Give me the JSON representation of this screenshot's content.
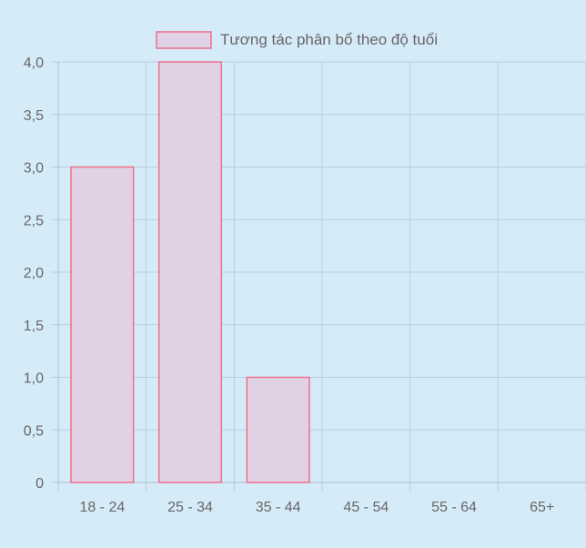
{
  "colors": {
    "background": "#d6ebf8",
    "grid": "#b9cde0",
    "bar_fill": "#e0d2e4",
    "bar_stroke": "#ed6f8c",
    "text": "#666666"
  },
  "chart_data": {
    "type": "bar",
    "legend": {
      "label": "Tương tác phân bổ theo độ tuổi",
      "placement": "top-center"
    },
    "categories": [
      "18 - 24",
      "25 - 34",
      "35 - 44",
      "45 - 54",
      "55 - 64",
      "65+"
    ],
    "series": [
      {
        "name": "Tương tác phân bổ theo độ tuổi",
        "values": [
          3,
          4,
          1,
          0,
          0,
          0
        ]
      }
    ],
    "ylim": [
      0,
      4
    ],
    "y_ticks": [
      "0",
      "0,5",
      "1,0",
      "1,5",
      "2,0",
      "2,5",
      "3,0",
      "3,5",
      "4,0"
    ],
    "grid": true
  }
}
